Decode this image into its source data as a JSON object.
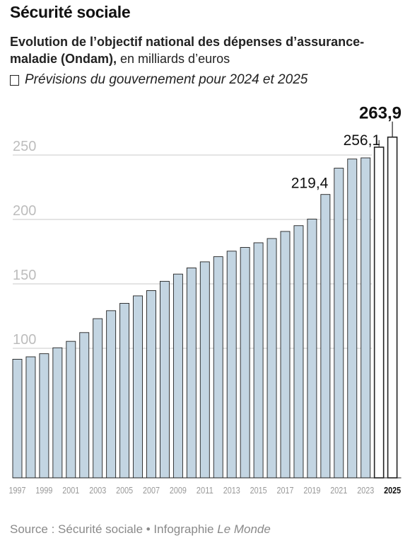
{
  "header": {
    "title": "Sécurité sociale",
    "subtitle_bold": "Evolution de l’objectif national des dépenses d’assurance-maladie (Ondam),",
    "subtitle_rest": " en milliards d’euros",
    "legend_label": "Prévisions du gouvernement pour 2024 et 2025"
  },
  "footer": {
    "source_prefix": "Source : Sécurité sociale • Infographie ",
    "source_brand": "Le Monde"
  },
  "colors": {
    "bar_fill": "#c3d5e2",
    "bar_stroke": "#222222",
    "forecast_fill": "#ffffff",
    "gridline": "#c8c8c8",
    "tick_label": "#bdbdbd",
    "year_label": "#999999"
  },
  "chart_data": {
    "type": "bar",
    "title": "",
    "xlabel": "",
    "ylabel": "",
    "ylim": [
      0,
      270
    ],
    "yticks": [
      100,
      150,
      200,
      250
    ],
    "grid": true,
    "categories": [
      "1997",
      "1998",
      "1999",
      "2000",
      "2001",
      "2002",
      "2003",
      "2004",
      "2005",
      "2006",
      "2007",
      "2008",
      "2009",
      "2010",
      "2011",
      "2012",
      "2013",
      "2014",
      "2015",
      "2016",
      "2017",
      "2018",
      "2019",
      "2020",
      "2021",
      "2022",
      "2023",
      "2024",
      "2025"
    ],
    "values": [
      91.5,
      93.4,
      95.8,
      100.4,
      105.4,
      112.2,
      123.0,
      129.2,
      134.9,
      140.7,
      144.8,
      152.0,
      157.6,
      162.4,
      167.1,
      171.1,
      175.4,
      178.3,
      181.9,
      185.2,
      190.7,
      195.2,
      200.3,
      219.4,
      239.8,
      246.9,
      247.8,
      256.1,
      263.9
    ],
    "forecast": [
      "2024",
      "2025"
    ],
    "x_tick_labels": [
      "1997",
      "1999",
      "2001",
      "2003",
      "2005",
      "2007",
      "2009",
      "2011",
      "2013",
      "2015",
      "2017",
      "2019",
      "2021",
      "2023",
      "2025"
    ],
    "data_labels": [
      {
        "category": "2020",
        "text": "219,4"
      },
      {
        "category": "2024",
        "text": "256,1"
      },
      {
        "category": "2025",
        "text": "263,9",
        "bold": true
      }
    ]
  }
}
